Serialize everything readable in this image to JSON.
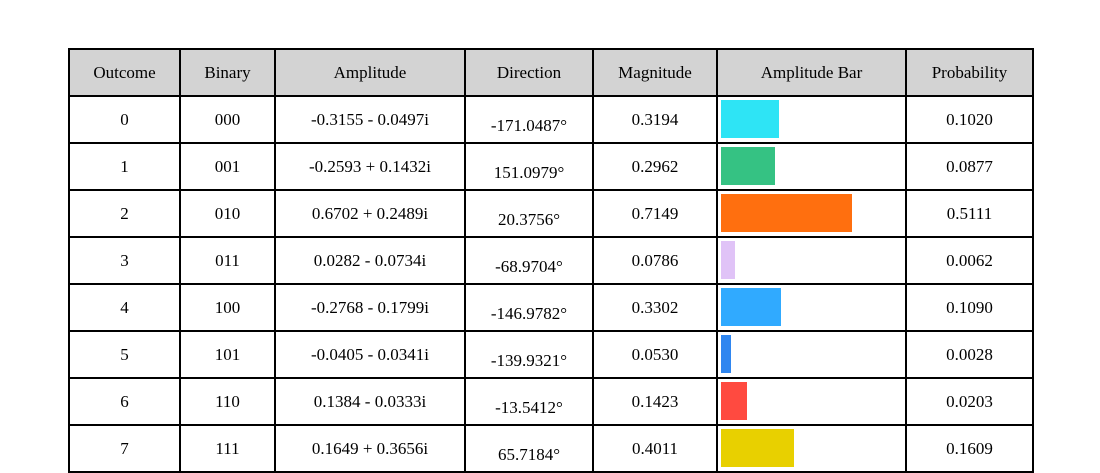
{
  "chart_data": {
    "type": "table",
    "columns": [
      "Outcome",
      "Binary",
      "Amplitude",
      "Direction",
      "Magnitude",
      "Amplitude Bar",
      "Probability"
    ],
    "rows": [
      {
        "outcome": "0",
        "binary": "000",
        "amplitude": "-0.3155 - 0.0497i",
        "direction": "-171.0487°",
        "magnitude": "0.3194",
        "magnitude_value": 0.3194,
        "bar_color": "#2ee4f5",
        "probability": "0.1020"
      },
      {
        "outcome": "1",
        "binary": "001",
        "amplitude": "-0.2593 + 0.1432i",
        "direction": "151.0979°",
        "magnitude": "0.2962",
        "magnitude_value": 0.2962,
        "bar_color": "#35c283",
        "probability": "0.0877"
      },
      {
        "outcome": "2",
        "binary": "010",
        "amplitude": "0.6702 + 0.2489i",
        "direction": "20.3756°",
        "magnitude": "0.7149",
        "magnitude_value": 0.7149,
        "bar_color": "#ff6f0f",
        "probability": "0.5111"
      },
      {
        "outcome": "3",
        "binary": "011",
        "amplitude": "0.0282 - 0.0734i",
        "direction": "-68.9704°",
        "magnitude": "0.0786",
        "magnitude_value": 0.0786,
        "bar_color": "#e0c3f7",
        "probability": "0.0062"
      },
      {
        "outcome": "4",
        "binary": "100",
        "amplitude": "-0.2768 - 0.1799i",
        "direction": "-146.9782°",
        "magnitude": "0.3302",
        "magnitude_value": 0.3302,
        "bar_color": "#30aaff",
        "probability": "0.1090"
      },
      {
        "outcome": "5",
        "binary": "101",
        "amplitude": "-0.0405 - 0.0341i",
        "direction": "-139.9321°",
        "magnitude": "0.0530",
        "magnitude_value": 0.053,
        "bar_color": "#2f86f0",
        "probability": "0.0028"
      },
      {
        "outcome": "6",
        "binary": "110",
        "amplitude": "0.1384 - 0.0333i",
        "direction": "-13.5412°",
        "magnitude": "0.1423",
        "magnitude_value": 0.1423,
        "bar_color": "#ff4a40",
        "probability": "0.0203"
      },
      {
        "outcome": "7",
        "binary": "111",
        "amplitude": "0.1649 + 0.3656i",
        "direction": "65.7184°",
        "magnitude": "0.4011",
        "magnitude_value": 0.4011,
        "bar_color": "#e8d000",
        "probability": "0.1609"
      }
    ]
  }
}
